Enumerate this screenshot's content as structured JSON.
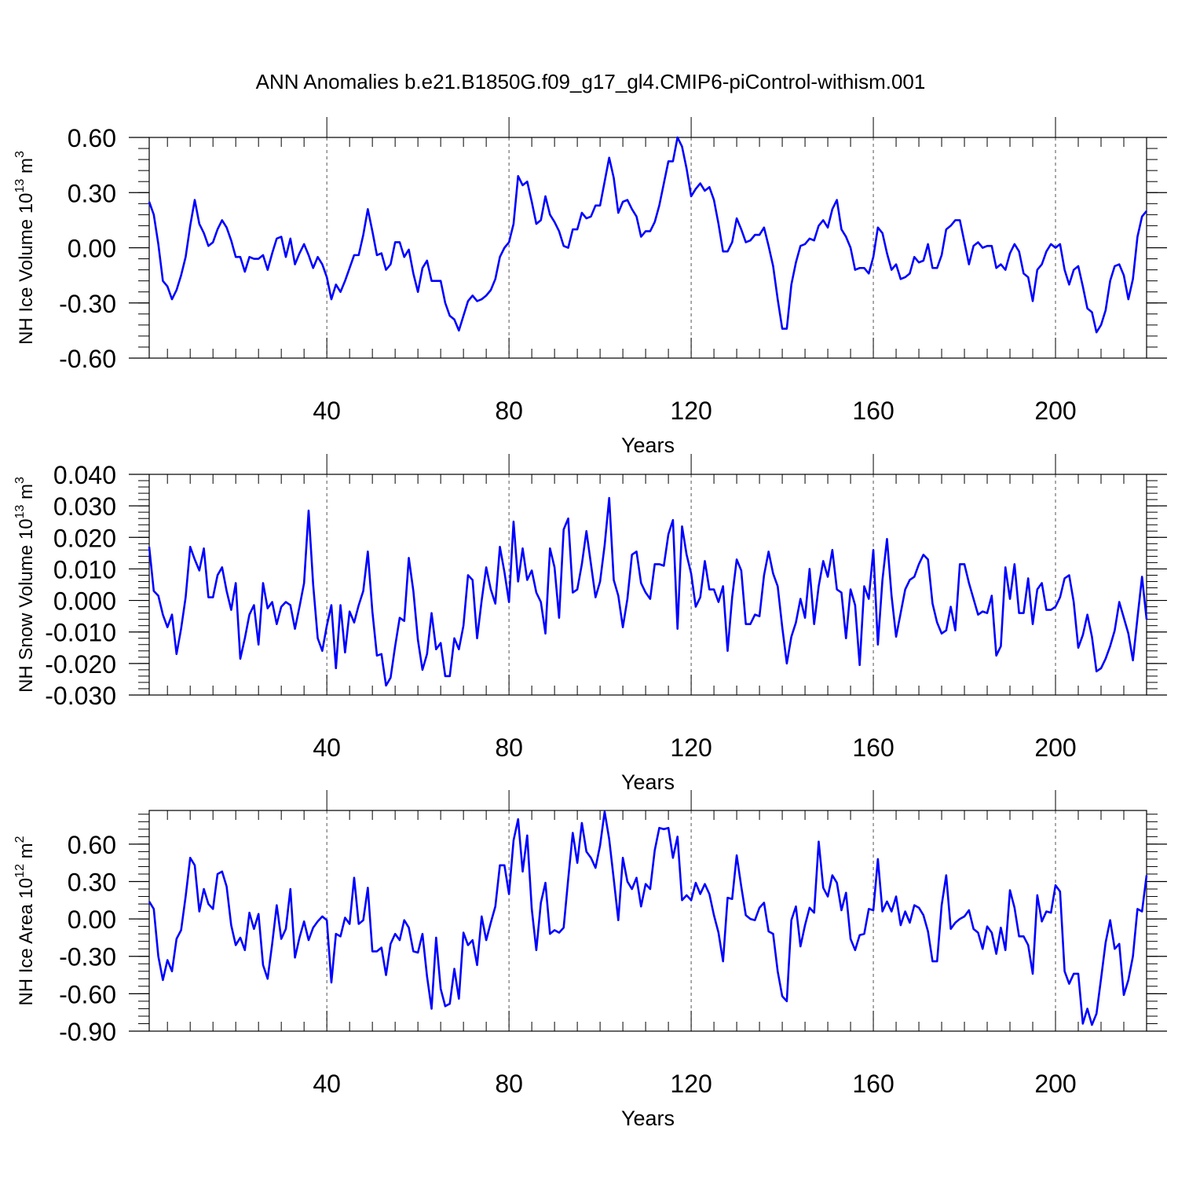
{
  "figure": {
    "title": "ANN Anomalies b.e21.B1850G.f09_g17_gl4.CMIP6-piControl-withism.001",
    "line_color": "#0000ff",
    "grid_color": "#555555"
  },
  "chart_data": [
    {
      "type": "line",
      "ylabel_main": "NH Ice Volume 10",
      "ylabel_exp": "13",
      "ylabel_unit": " m",
      "ylabel_unit_exp": "3",
      "xlabel": "Years",
      "xlim": [
        1,
        220
      ],
      "ylim": [
        -0.6,
        0.6
      ],
      "xticks": [
        40,
        80,
        120,
        160,
        200
      ],
      "xtick_labels": [
        "40",
        "80",
        "120",
        "160",
        "200"
      ],
      "yticks": [
        -0.6,
        -0.3,
        0.0,
        0.3,
        0.6
      ],
      "ytick_labels": [
        "-0.60",
        "-0.30",
        "0.00",
        "0.30",
        "0.60"
      ],
      "yminor": 0.06,
      "grid": "vertical dashed at major x ticks",
      "x_start": 1,
      "series": [
        {
          "name": "NH Ice Volume",
          "values": [
            0.25,
            0.18,
            0.02,
            -0.18,
            -0.21,
            -0.28,
            -0.23,
            -0.15,
            -0.05,
            0.12,
            0.26,
            0.13,
            0.08,
            0.01,
            0.03,
            0.1,
            0.15,
            0.11,
            0.04,
            -0.05,
            -0.05,
            -0.13,
            -0.05,
            -0.06,
            -0.06,
            -0.04,
            -0.12,
            -0.03,
            0.05,
            0.06,
            -0.05,
            0.05,
            -0.09,
            -0.03,
            0.02,
            -0.04,
            -0.11,
            -0.05,
            -0.09,
            -0.16,
            -0.28,
            -0.2,
            -0.24,
            -0.18,
            -0.11,
            -0.04,
            -0.04,
            0.07,
            0.21,
            0.09,
            -0.04,
            -0.03,
            -0.12,
            -0.09,
            0.03,
            0.03,
            -0.05,
            -0.01,
            -0.14,
            -0.24,
            -0.11,
            -0.07,
            -0.18,
            -0.18,
            -0.18,
            -0.3,
            -0.37,
            -0.39,
            -0.45,
            -0.37,
            -0.29,
            -0.26,
            -0.29,
            -0.28,
            -0.26,
            -0.23,
            -0.17,
            -0.05,
            0.0,
            0.03,
            0.13,
            0.39,
            0.34,
            0.36,
            0.25,
            0.13,
            0.15,
            0.28,
            0.18,
            0.14,
            0.09,
            0.01,
            0.0,
            0.1,
            0.1,
            0.19,
            0.16,
            0.17,
            0.23,
            0.23,
            0.36,
            0.49,
            0.38,
            0.19,
            0.25,
            0.26,
            0.21,
            0.17,
            0.06,
            0.09,
            0.09,
            0.14,
            0.23,
            0.35,
            0.47,
            0.47,
            0.6,
            0.55,
            0.43,
            0.28,
            0.32,
            0.35,
            0.31,
            0.33,
            0.26,
            0.13,
            -0.02,
            -0.02,
            0.03,
            0.16,
            0.1,
            0.03,
            0.04,
            0.07,
            0.07,
            0.11,
            0.01,
            -0.1,
            -0.28,
            -0.44,
            -0.44,
            -0.2,
            -0.08,
            0.01,
            0.02,
            0.05,
            0.04,
            0.12,
            0.15,
            0.11,
            0.21,
            0.26,
            0.1,
            0.06,
            0.0,
            -0.12,
            -0.11,
            -0.11,
            -0.14,
            -0.05,
            0.11,
            0.08,
            -0.03,
            -0.12,
            -0.09,
            -0.17,
            -0.16,
            -0.14,
            -0.05,
            -0.08,
            -0.07,
            0.02,
            -0.11,
            -0.11,
            -0.04,
            0.1,
            0.12,
            0.15,
            0.15,
            0.03,
            -0.09,
            0.01,
            0.03,
            0.0,
            0.01,
            0.01,
            -0.11,
            -0.09,
            -0.12,
            -0.03,
            0.02,
            -0.02,
            -0.14,
            -0.16,
            -0.29,
            -0.12,
            -0.09,
            -0.02,
            0.02,
            0.0,
            0.02,
            -0.12,
            -0.2,
            -0.12,
            -0.1,
            -0.21,
            -0.33,
            -0.35,
            -0.46,
            -0.42,
            -0.34,
            -0.18,
            -0.1,
            -0.09,
            -0.15,
            -0.28,
            -0.17,
            0.06,
            0.17,
            0.2
          ]
        }
      ]
    },
    {
      "type": "line",
      "ylabel_main": "NH Snow Volume 10",
      "ylabel_exp": "13",
      "ylabel_unit": " m",
      "ylabel_unit_exp": "3",
      "xlabel": "Years",
      "xlim": [
        1,
        220
      ],
      "ylim": [
        -0.03,
        0.04
      ],
      "xticks": [
        40,
        80,
        120,
        160,
        200
      ],
      "xtick_labels": [
        "40",
        "80",
        "120",
        "160",
        "200"
      ],
      "yticks": [
        -0.03,
        -0.02,
        -0.01,
        0.0,
        0.01,
        0.02,
        0.03,
        0.04
      ],
      "ytick_labels": [
        "-0.030",
        "-0.020",
        "-0.010",
        "0.000",
        "0.010",
        "0.020",
        "0.030",
        "0.040"
      ],
      "yminor": 0.002,
      "grid": "vertical dashed at major x ticks",
      "x_start": 1,
      "series": [
        {
          "name": "NH Snow Volume",
          "values": [
            0.017,
            0.003,
            0.0015,
            -0.0045,
            -0.0085,
            -0.0045,
            -0.017,
            -0.009,
            0.001,
            0.017,
            0.013,
            0.0095,
            0.0165,
            0.001,
            0.001,
            0.008,
            0.0105,
            0.003,
            -0.003,
            0.0055,
            -0.0185,
            -0.012,
            -0.0045,
            -0.0015,
            -0.014,
            0.0055,
            -0.0025,
            -0.0005,
            -0.0075,
            -0.002,
            -0.0005,
            -0.0015,
            -0.009,
            -0.002,
            0.0055,
            0.0285,
            0.005,
            -0.012,
            -0.016,
            -0.008,
            -0.0015,
            -0.0215,
            -0.0015,
            -0.0165,
            -0.0035,
            -0.007,
            -0.0015,
            0.003,
            0.0155,
            -0.0035,
            -0.0175,
            -0.017,
            -0.027,
            -0.0245,
            -0.0145,
            -0.0055,
            -0.0065,
            0.0135,
            0.003,
            -0.0125,
            -0.022,
            -0.017,
            -0.004,
            -0.0155,
            -0.0135,
            -0.024,
            -0.024,
            -0.012,
            -0.0155,
            -0.008,
            0.008,
            0.0065,
            -0.012,
            0.0,
            0.0105,
            0.0035,
            -0.001,
            0.017,
            0.009,
            -0.0005,
            0.025,
            0.006,
            0.0165,
            0.0065,
            0.0095,
            0.0025,
            -0.0005,
            -0.0105,
            0.0165,
            0.0105,
            -0.0055,
            0.0225,
            0.026,
            0.0025,
            0.0035,
            0.0115,
            0.022,
            0.0115,
            0.001,
            0.006,
            0.0175,
            0.0325,
            0.0065,
            0.0015,
            -0.0085,
            0.0005,
            0.0145,
            0.0155,
            0.0055,
            0.0025,
            0.0005,
            0.0115,
            0.0115,
            0.011,
            0.021,
            0.0255,
            -0.009,
            0.0235,
            0.0145,
            0.0085,
            -0.002,
            0.001,
            0.0125,
            0.0035,
            0.0035,
            -0.0005,
            0.0045,
            -0.016,
            0.001,
            0.013,
            0.0095,
            -0.0075,
            -0.0075,
            -0.0045,
            -0.005,
            0.008,
            0.0155,
            0.0085,
            0.0045,
            -0.0085,
            -0.02,
            -0.0115,
            -0.007,
            0.0005,
            -0.0055,
            0.01,
            -0.0075,
            0.0045,
            0.0125,
            0.0075,
            0.016,
            0.0035,
            0.0025,
            -0.012,
            0.0035,
            -0.0015,
            -0.0205,
            0.0045,
            0.0005,
            0.016,
            -0.014,
            0.0065,
            0.0195,
            0.0015,
            -0.0115,
            -0.004,
            0.0035,
            0.0065,
            0.0075,
            0.0115,
            0.0145,
            0.013,
            -0.001,
            -0.007,
            -0.0105,
            -0.0095,
            -0.002,
            -0.0095,
            0.0115,
            0.0115,
            0.0055,
            0.0005,
            -0.0045,
            -0.0035,
            -0.004,
            0.0015,
            -0.0175,
            -0.0145,
            0.0105,
            0.0005,
            0.0115,
            -0.004,
            -0.004,
            0.007,
            -0.0075,
            0.0035,
            0.0055,
            -0.003,
            -0.003,
            -0.002,
            0.001,
            0.007,
            0.008,
            -0.0005,
            -0.015,
            -0.011,
            -0.0045,
            -0.0115,
            -0.0225,
            -0.0215,
            -0.0185,
            -0.0145,
            -0.0095,
            -0.0005,
            -0.0055,
            -0.0105,
            -0.019,
            -0.0055,
            0.0075,
            -0.006
          ]
        }
      ]
    },
    {
      "type": "line",
      "ylabel_main": "NH Ice Area 10",
      "ylabel_exp": "12",
      "ylabel_unit": " m",
      "ylabel_unit_exp": "2",
      "xlabel": "Years",
      "xlim": [
        1,
        220
      ],
      "ylim": [
        -0.9,
        0.87
      ],
      "xticks": [
        40,
        80,
        120,
        160,
        200
      ],
      "xtick_labels": [
        "40",
        "80",
        "120",
        "160",
        "200"
      ],
      "yticks": [
        -0.9,
        -0.6,
        -0.3,
        0.0,
        0.3,
        0.6
      ],
      "ytick_labels": [
        "-0.90",
        "-0.60",
        "-0.30",
        "0.00",
        "0.30",
        "0.60"
      ],
      "yminor": 0.06,
      "grid": "vertical dashed at major x ticks",
      "x_start": 1,
      "series": [
        {
          "name": "NH Ice Area",
          "values": [
            0.14,
            0.08,
            -0.3,
            -0.49,
            -0.33,
            -0.42,
            -0.16,
            -0.09,
            0.18,
            0.49,
            0.43,
            0.06,
            0.24,
            0.12,
            0.08,
            0.36,
            0.38,
            0.26,
            -0.05,
            -0.21,
            -0.15,
            -0.25,
            0.05,
            -0.08,
            0.04,
            -0.37,
            -0.48,
            -0.2,
            0.11,
            -0.16,
            -0.08,
            0.24,
            -0.31,
            -0.15,
            -0.02,
            -0.17,
            -0.07,
            -0.02,
            0.02,
            -0.01,
            -0.51,
            -0.12,
            -0.14,
            0.01,
            -0.04,
            0.33,
            -0.04,
            -0.01,
            0.25,
            -0.26,
            -0.26,
            -0.23,
            -0.45,
            -0.2,
            -0.12,
            -0.17,
            -0.01,
            -0.07,
            -0.26,
            -0.27,
            -0.12,
            -0.46,
            -0.72,
            -0.15,
            -0.56,
            -0.7,
            -0.68,
            -0.4,
            -0.64,
            -0.11,
            -0.21,
            -0.17,
            -0.37,
            0.02,
            -0.17,
            -0.03,
            0.1,
            0.43,
            0.43,
            0.2,
            0.63,
            0.8,
            0.38,
            0.67,
            0.08,
            -0.25,
            0.13,
            0.29,
            -0.12,
            -0.09,
            -0.11,
            -0.07,
            0.32,
            0.69,
            0.45,
            0.77,
            0.54,
            0.49,
            0.41,
            0.59,
            0.86,
            0.64,
            0.32,
            -0.01,
            0.49,
            0.3,
            0.24,
            0.33,
            0.1,
            0.28,
            0.24,
            0.55,
            0.73,
            0.72,
            0.73,
            0.49,
            0.66,
            0.15,
            0.19,
            0.15,
            0.29,
            0.2,
            0.28,
            0.2,
            0.03,
            -0.11,
            -0.34,
            0.17,
            0.16,
            0.51,
            0.26,
            0.03,
            0.0,
            -0.01,
            0.09,
            0.13,
            -0.1,
            -0.12,
            -0.42,
            -0.62,
            -0.66,
            -0.01,
            0.1,
            -0.22,
            -0.05,
            0.09,
            0.05,
            0.62,
            0.25,
            0.18,
            0.35,
            0.29,
            0.07,
            0.21,
            -0.16,
            -0.25,
            -0.13,
            -0.12,
            0.08,
            0.07,
            0.48,
            0.06,
            0.14,
            0.06,
            0.18,
            -0.05,
            0.06,
            -0.03,
            0.11,
            0.09,
            0.03,
            -0.1,
            -0.34,
            -0.34,
            0.11,
            0.35,
            -0.08,
            -0.03,
            0.0,
            0.02,
            0.07,
            -0.08,
            -0.11,
            -0.24,
            -0.06,
            -0.11,
            -0.28,
            -0.07,
            -0.25,
            0.23,
            0.09,
            -0.14,
            -0.14,
            -0.21,
            -0.44,
            0.19,
            -0.02,
            0.06,
            0.05,
            0.27,
            0.22,
            -0.42,
            -0.52,
            -0.44,
            -0.44,
            -0.84,
            -0.72,
            -0.85,
            -0.76,
            -0.48,
            -0.19,
            -0.01,
            -0.24,
            -0.2,
            -0.61,
            -0.49,
            -0.3,
            0.08,
            0.06,
            0.35
          ]
        }
      ]
    }
  ]
}
